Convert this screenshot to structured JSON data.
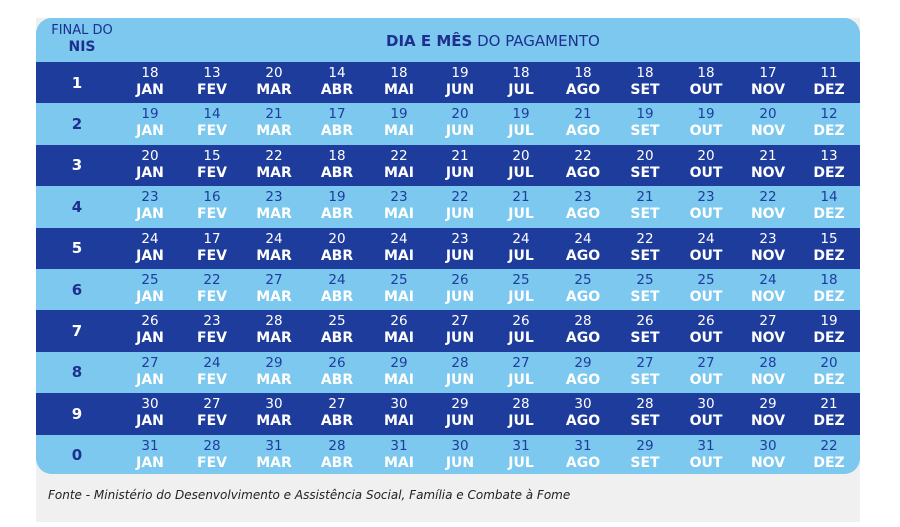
{
  "header": {
    "nis_line1": "FINAL DO",
    "nis_line2": "NIS",
    "title_bold": "DIA E MÊS",
    "title_rest": " DO PAGAMENTO"
  },
  "rows": [
    {
      "nis": "1",
      "days": [
        "18",
        "13",
        "20",
        "14",
        "18",
        "19",
        "18",
        "18",
        "18",
        "18",
        "17",
        "11"
      ]
    },
    {
      "nis": "2",
      "days": [
        "19",
        "14",
        "21",
        "17",
        "19",
        "20",
        "19",
        "21",
        "19",
        "19",
        "20",
        "12"
      ]
    },
    {
      "nis": "3",
      "days": [
        "20",
        "15",
        "22",
        "18",
        "22",
        "21",
        "20",
        "22",
        "20",
        "20",
        "21",
        "13"
      ]
    },
    {
      "nis": "4",
      "days": [
        "23",
        "16",
        "23",
        "19",
        "23",
        "22",
        "21",
        "23",
        "21",
        "23",
        "22",
        "14"
      ]
    },
    {
      "nis": "5",
      "days": [
        "24",
        "17",
        "24",
        "20",
        "24",
        "23",
        "24",
        "24",
        "22",
        "24",
        "23",
        "15"
      ]
    },
    {
      "nis": "6",
      "days": [
        "25",
        "22",
        "27",
        "24",
        "25",
        "26",
        "25",
        "25",
        "25",
        "25",
        "24",
        "18"
      ]
    },
    {
      "nis": "7",
      "days": [
        "26",
        "23",
        "28",
        "25",
        "26",
        "27",
        "26",
        "28",
        "26",
        "26",
        "27",
        "19"
      ]
    },
    {
      "nis": "8",
      "days": [
        "27",
        "24",
        "29",
        "26",
        "29",
        "28",
        "27",
        "29",
        "27",
        "27",
        "28",
        "20"
      ]
    },
    {
      "nis": "9",
      "days": [
        "30",
        "27",
        "30",
        "27",
        "30",
        "29",
        "28",
        "30",
        "28",
        "30",
        "29",
        "21"
      ]
    },
    {
      "nis": "0",
      "days": [
        "31",
        "28",
        "31",
        "28",
        "31",
        "30",
        "31",
        "31",
        "29",
        "31",
        "30",
        "22"
      ]
    }
  ],
  "months": [
    "JAN",
    "FEV",
    "MAR",
    "ABR",
    "MAI",
    "JUN",
    "JUL",
    "AGO",
    "SET",
    "OUT",
    "NOV",
    "DEZ"
  ],
  "caption": "Fonte - Ministério do Desenvolvimento e Assistência Social, Família e Combate à Fome",
  "colors": {
    "dark_row": "#1e3c9c",
    "light_row": "#7cc8ef",
    "header_text": "#1e2f8f"
  }
}
